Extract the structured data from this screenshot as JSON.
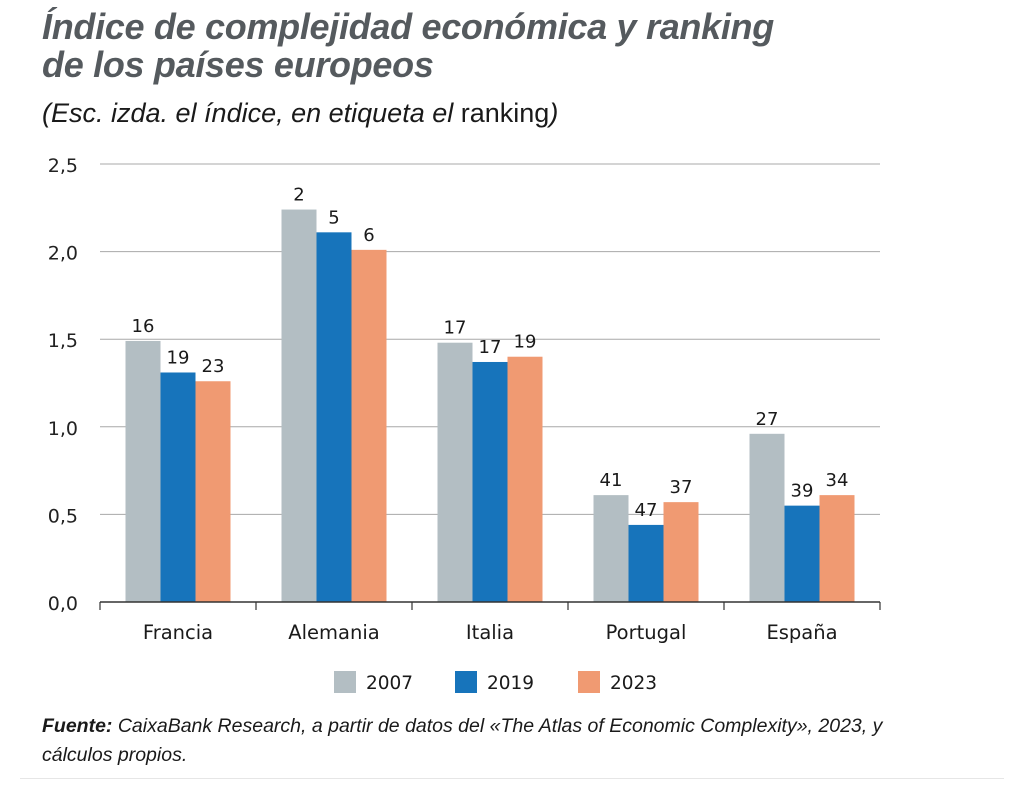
{
  "chart_data": {
    "type": "bar",
    "title_line1": "Índice de complejidad económica y ranking",
    "title_line2": "de los países europeos",
    "subtitle_italic": "(Esc. izda. el índice, en etiqueta el",
    "subtitle_roman": " ranking",
    "subtitle_close": ")",
    "categories": [
      "Francia",
      "Alemania",
      "Italia",
      "Portugal",
      "España"
    ],
    "series": [
      {
        "name": "2007",
        "color": "#b3bec3",
        "values": [
          1.49,
          2.24,
          1.48,
          0.61,
          0.96
        ],
        "labels": [
          "16",
          "2",
          "17",
          "41",
          "27"
        ]
      },
      {
        "name": "2019",
        "color": "#1774bb",
        "values": [
          1.31,
          2.11,
          1.37,
          0.44,
          0.55
        ],
        "labels": [
          "19",
          "5",
          "17",
          "47",
          "39"
        ]
      },
      {
        "name": "2023",
        "color": "#f09a72",
        "values": [
          1.26,
          2.01,
          1.4,
          0.57,
          0.61
        ],
        "labels": [
          "23",
          "6",
          "19",
          "37",
          "34"
        ]
      }
    ],
    "yticks": [
      "0,0",
      "0,5",
      "1,0",
      "1,5",
      "2,0",
      "2,5"
    ],
    "ylim": [
      0,
      2.5
    ],
    "grid": true,
    "legend_position": "bottom"
  },
  "source": {
    "label": "Fuente:",
    "text": " CaixaBank Research, a partir de datos del «The Atlas of Economic Complexity», 2023, y cálculos propios."
  }
}
